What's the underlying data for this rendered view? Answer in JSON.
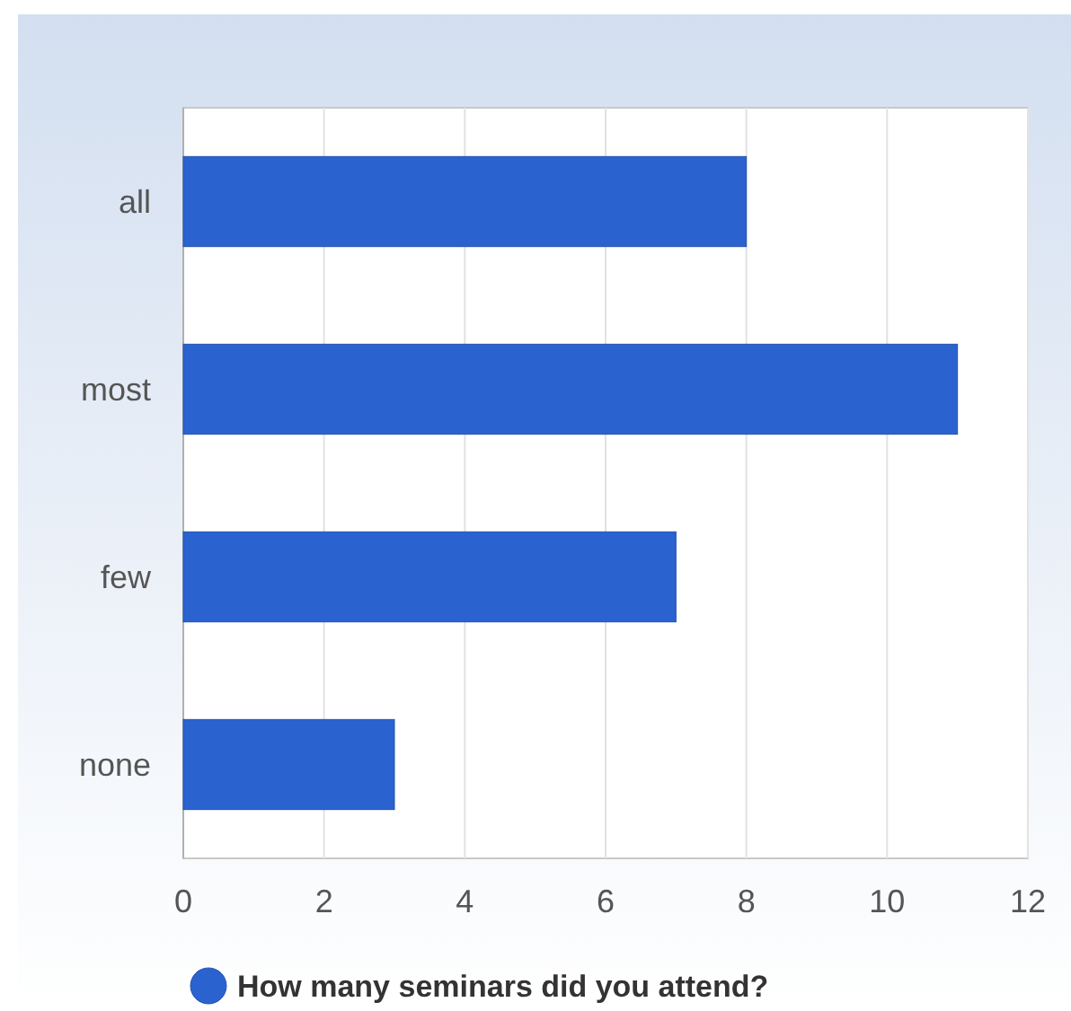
{
  "chart_data": {
    "type": "bar",
    "orientation": "horizontal",
    "categories": [
      "all",
      "most",
      "few",
      "none"
    ],
    "series": [
      {
        "name": "How many seminars did you attend?",
        "color": "#2a62d0",
        "values": [
          8,
          11,
          7,
          3
        ]
      }
    ],
    "xlim": [
      0,
      12
    ],
    "xticks": [
      0,
      2,
      4,
      6,
      8,
      10,
      12
    ],
    "grid": "x",
    "legend": "bottom"
  }
}
